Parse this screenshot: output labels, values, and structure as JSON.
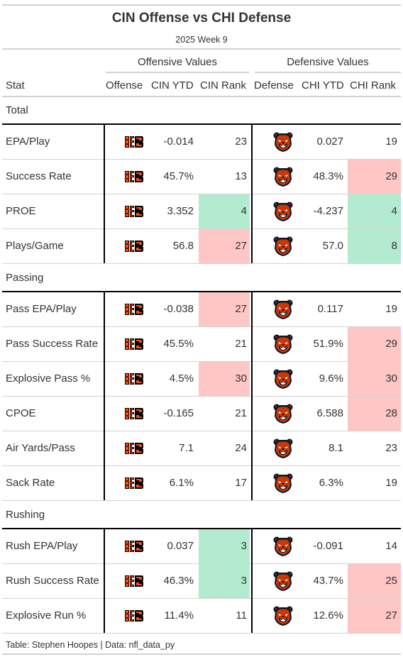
{
  "header": {
    "title": "CIN Offense vs CHI Defense",
    "subtitle": "2025 Week 9"
  },
  "spanners": {
    "offense": "Offensive Values",
    "defense": "Defensive Values"
  },
  "columns": {
    "stat": "Stat",
    "offense": "Offense",
    "cin_ytd": "CIN YTD",
    "cin_rank": "CIN Rank",
    "defense": "Defense",
    "chi_ytd": "CHI YTD",
    "chi_rank": "CHI Rank"
  },
  "colors": {
    "good": "#b3ebd0",
    "bad": "#ffc6c6",
    "bengals_orange": "#fb4f14",
    "bears_navy": "#0b162a",
    "bears_orange": "#c83803"
  },
  "icons": {
    "offense": "bengals-logo-icon",
    "defense": "bears-logo-icon"
  },
  "groups": [
    {
      "label": "Total",
      "rows": [
        {
          "stat": "EPA/Play",
          "cin_ytd": "-0.014",
          "cin_rank": "23",
          "cin_color": "",
          "chi_ytd": "0.027",
          "chi_rank": "19",
          "chi_color": ""
        },
        {
          "stat": "Success Rate",
          "cin_ytd": "45.7%",
          "cin_rank": "13",
          "cin_color": "",
          "chi_ytd": "48.3%",
          "chi_rank": "29",
          "chi_color": "bad"
        },
        {
          "stat": "PROE",
          "cin_ytd": "3.352",
          "cin_rank": "4",
          "cin_color": "good",
          "chi_ytd": "-4.237",
          "chi_rank": "4",
          "chi_color": "good"
        },
        {
          "stat": "Plays/Game",
          "cin_ytd": "56.8",
          "cin_rank": "27",
          "cin_color": "bad",
          "chi_ytd": "57.0",
          "chi_rank": "8",
          "chi_color": "good"
        }
      ]
    },
    {
      "label": "Passing",
      "rows": [
        {
          "stat": "Pass EPA/Play",
          "cin_ytd": "-0.038",
          "cin_rank": "27",
          "cin_color": "bad",
          "chi_ytd": "0.117",
          "chi_rank": "19",
          "chi_color": ""
        },
        {
          "stat": "Pass Success Rate",
          "cin_ytd": "45.5%",
          "cin_rank": "21",
          "cin_color": "",
          "chi_ytd": "51.9%",
          "chi_rank": "29",
          "chi_color": "bad"
        },
        {
          "stat": "Explosive Pass %",
          "cin_ytd": "4.5%",
          "cin_rank": "30",
          "cin_color": "bad",
          "chi_ytd": "9.6%",
          "chi_rank": "30",
          "chi_color": "bad"
        },
        {
          "stat": "CPOE",
          "cin_ytd": "-0.165",
          "cin_rank": "21",
          "cin_color": "",
          "chi_ytd": "6.588",
          "chi_rank": "28",
          "chi_color": "bad"
        },
        {
          "stat": "Air Yards/Pass",
          "cin_ytd": "7.1",
          "cin_rank": "24",
          "cin_color": "",
          "chi_ytd": "8.1",
          "chi_rank": "23",
          "chi_color": ""
        },
        {
          "stat": "Sack Rate",
          "cin_ytd": "6.1%",
          "cin_rank": "17",
          "cin_color": "",
          "chi_ytd": "6.3%",
          "chi_rank": "19",
          "chi_color": ""
        }
      ]
    },
    {
      "label": "Rushing",
      "rows": [
        {
          "stat": "Rush EPA/Play",
          "cin_ytd": "0.037",
          "cin_rank": "3",
          "cin_color": "good",
          "chi_ytd": "-0.091",
          "chi_rank": "14",
          "chi_color": ""
        },
        {
          "stat": "Rush Success Rate",
          "cin_ytd": "46.3%",
          "cin_rank": "3",
          "cin_color": "good",
          "chi_ytd": "43.7%",
          "chi_rank": "25",
          "chi_color": "bad"
        },
        {
          "stat": "Explosive Run %",
          "cin_ytd": "11.4%",
          "cin_rank": "11",
          "cin_color": "",
          "chi_ytd": "12.6%",
          "chi_rank": "27",
          "chi_color": "bad"
        }
      ]
    }
  ],
  "footer": "Table: Stephen Hoopes | Data: nfl_data_py"
}
